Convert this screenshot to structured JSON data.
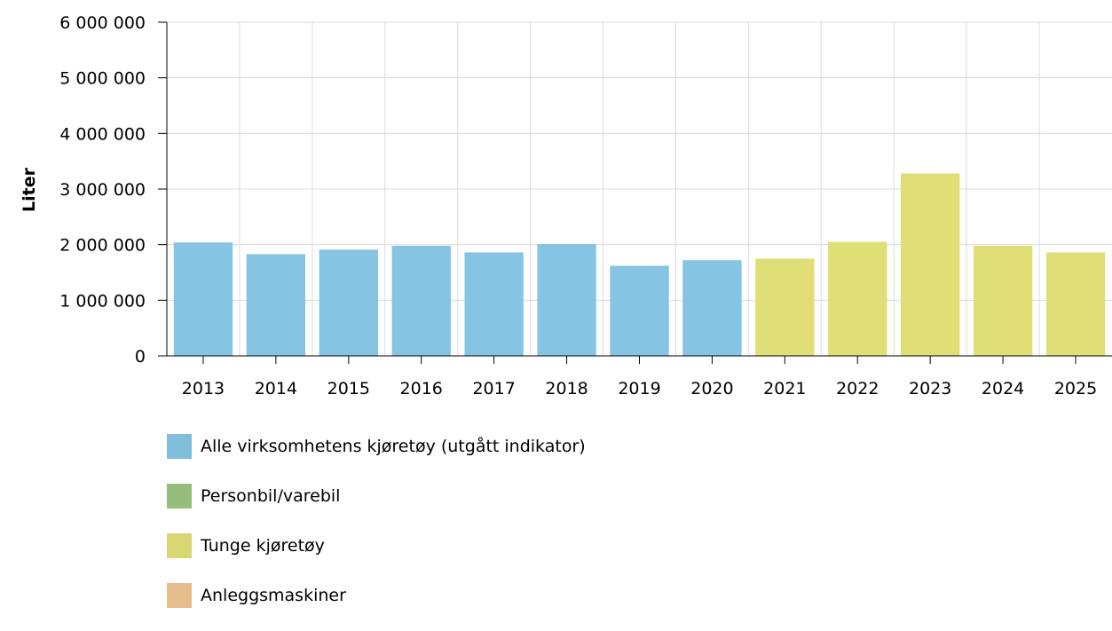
{
  "chart_data": {
    "type": "bar",
    "ylabel": "Liter",
    "xlabel": "",
    "ylim": [
      0,
      6000000
    ],
    "yticks": [
      0,
      1000000,
      2000000,
      3000000,
      4000000,
      5000000,
      6000000
    ],
    "ytick_labels": [
      "0",
      "1 000 000",
      "2 000 000",
      "3 000 000",
      "4 000 000",
      "5 000 000",
      "6 000 000"
    ],
    "categories": [
      "2013",
      "2014",
      "2015",
      "2016",
      "2017",
      "2018",
      "2019",
      "2020",
      "2021",
      "2022",
      "2023",
      "2024",
      "2025"
    ],
    "series": [
      {
        "name": "Alle virksomhetens kjøretøy (utgått indikator)",
        "color": "#85c4e3",
        "values": [
          2040000,
          1830000,
          1910000,
          1980000,
          1860000,
          2010000,
          1620000,
          1720000,
          null,
          null,
          null,
          null,
          null
        ]
      },
      {
        "name": "Personbil/varebil",
        "color": "#9bc47e",
        "values": [
          null,
          null,
          null,
          null,
          null,
          null,
          null,
          null,
          null,
          null,
          null,
          null,
          null
        ]
      },
      {
        "name": "Tunge kjøretøy",
        "color": "#e0de77",
        "values": [
          null,
          null,
          null,
          null,
          null,
          null,
          null,
          null,
          1750000,
          2050000,
          3280000,
          1980000,
          1860000
        ]
      },
      {
        "name": "Anleggsmaskiner",
        "color": "#ecc48f",
        "values": [
          null,
          null,
          null,
          null,
          null,
          null,
          null,
          null,
          null,
          null,
          null,
          null,
          null
        ]
      }
    ],
    "grid": true,
    "legend_position": "bottom-left"
  }
}
